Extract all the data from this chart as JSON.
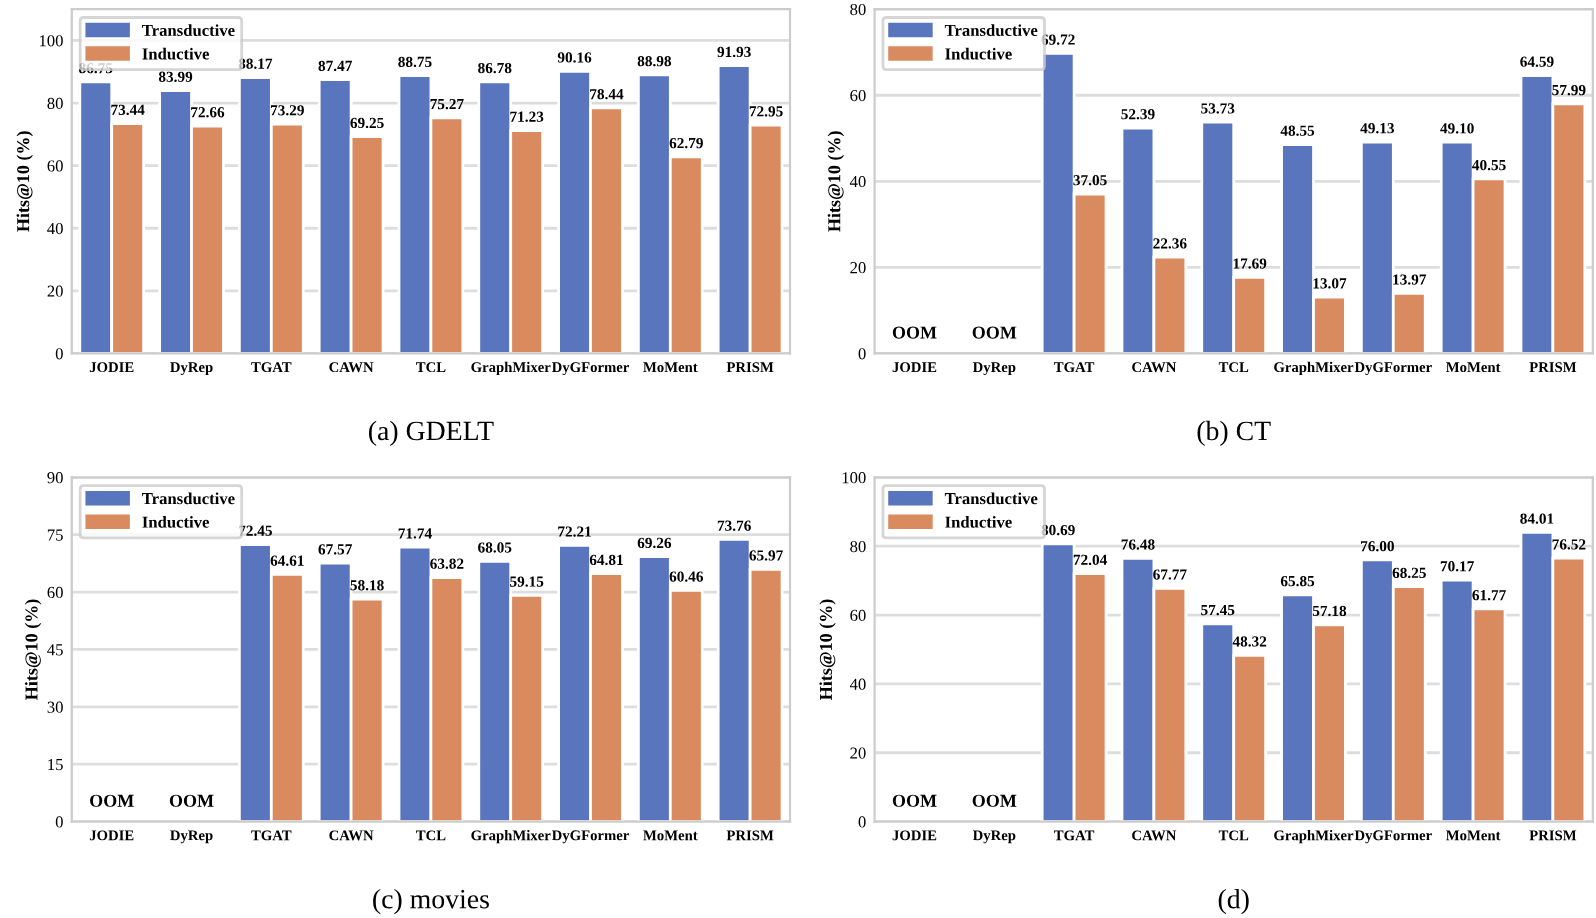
{
  "chart_data": [
    {
      "type": "bar",
      "title": "(a) GDELT",
      "ylabel": "Hits@10 (%)",
      "categories": [
        "JODIE",
        "DyRep",
        "TGAT",
        "CAWN",
        "TCL",
        "GraphMixer",
        "DyGFormer",
        "MoMent",
        "PRISM"
      ],
      "series": [
        {
          "name": "Transductive",
          "color": "#5975be",
          "values": [
            86.75,
            83.99,
            88.17,
            87.47,
            88.75,
            86.78,
            90.16,
            88.98,
            91.93
          ],
          "value_labels": [
            "86.75",
            "83.99",
            "88.17",
            "87.47",
            "88.75",
            "86.78",
            "90.16",
            "88.98",
            "91.93"
          ]
        },
        {
          "name": "Inductive",
          "color": "#d98a5f",
          "values": [
            73.44,
            72.66,
            73.29,
            69.25,
            75.27,
            71.23,
            78.44,
            62.79,
            72.95
          ],
          "value_labels": [
            "73.44",
            "72.66",
            "73.29",
            "69.25",
            "75.27",
            "71.23",
            "78.44",
            "62.79",
            "72.95"
          ]
        }
      ],
      "ylim": [
        0,
        110
      ],
      "yticks": [
        0,
        20,
        40,
        60,
        80,
        100
      ],
      "grid": "y",
      "legend": "top left"
    },
    {
      "type": "bar",
      "title": "(b) CT",
      "ylabel": "Hits@10 (%)",
      "categories": [
        "JODIE",
        "DyRep",
        "TGAT",
        "CAWN",
        "TCL",
        "GraphMixer",
        "DyGFormer",
        "MoMent",
        "PRISM"
      ],
      "series": [
        {
          "name": "Transductive",
          "color": "#5975be",
          "values": [
            null,
            null,
            69.72,
            52.39,
            53.73,
            48.55,
            49.13,
            49.1,
            64.59
          ],
          "value_labels": [
            null,
            null,
            "69.72",
            "52.39",
            "53.73",
            "48.55",
            "49.13",
            "49.10",
            "64.59"
          ]
        },
        {
          "name": "Inductive",
          "color": "#d98a5f",
          "values": [
            null,
            null,
            37.05,
            22.36,
            17.69,
            13.07,
            13.97,
            40.55,
            57.99
          ],
          "value_labels": [
            null,
            null,
            "37.05",
            "22.36",
            "17.69",
            "13.07",
            "13.97",
            "40.55",
            "57.99"
          ]
        }
      ],
      "annotations": [
        "OOM",
        "OOM"
      ],
      "ylim": [
        0,
        80
      ],
      "yticks": [
        0,
        20,
        40,
        60,
        80
      ],
      "grid": "y",
      "legend": "top left"
    },
    {
      "type": "bar",
      "title": "(c) movies",
      "ylabel": "Hits@10 (%)",
      "categories": [
        "JODIE",
        "DyRep",
        "TGAT",
        "CAWN",
        "TCL",
        "GraphMixer",
        "DyGFormer",
        "MoMent",
        "PRISM"
      ],
      "series": [
        {
          "name": "Transductive",
          "color": "#5975be",
          "values": [
            null,
            null,
            72.45,
            67.57,
            71.74,
            68.05,
            72.21,
            69.26,
            73.76
          ],
          "value_labels": [
            null,
            null,
            "72.45",
            "67.57",
            "71.74",
            "68.05",
            "72.21",
            "69.26",
            "73.76"
          ]
        },
        {
          "name": "Inductive",
          "color": "#d98a5f",
          "values": [
            null,
            null,
            64.61,
            58.18,
            63.82,
            59.15,
            64.81,
            60.46,
            65.97
          ],
          "value_labels": [
            null,
            null,
            "64.61",
            "58.18",
            "63.82",
            "59.15",
            "64.81",
            "60.46",
            "65.97"
          ]
        }
      ],
      "annotations": [
        "OOM",
        "OOM"
      ],
      "ylim": [
        0,
        90
      ],
      "yticks": [
        0,
        15,
        30,
        45,
        60,
        75,
        90
      ],
      "grid": "y",
      "legend": "top left"
    },
    {
      "type": "bar",
      "title": "(d)",
      "ylabel": "Hits@10 (%)",
      "categories": [
        "JODIE",
        "DyRep",
        "TGAT",
        "CAWN",
        "TCL",
        "GraphMixer",
        "DyGFormer",
        "MoMent",
        "PRISM"
      ],
      "series": [
        {
          "name": "Transductive",
          "color": "#5975be",
          "values": [
            null,
            null,
            80.69,
            76.48,
            57.45,
            65.85,
            76.0,
            70.17,
            84.01
          ],
          "value_labels": [
            null,
            null,
            "80.69",
            "76.48",
            "57.45",
            "65.85",
            "76.00",
            "70.17",
            "84.01"
          ]
        },
        {
          "name": "Inductive",
          "color": "#d98a5f",
          "values": [
            null,
            null,
            72.04,
            67.77,
            48.32,
            57.18,
            68.25,
            61.77,
            76.52
          ],
          "value_labels": [
            null,
            null,
            "72.04",
            "67.77",
            "48.32",
            "57.18",
            "68.25",
            "61.77",
            "76.52"
          ]
        }
      ],
      "annotations": [
        "OOM",
        "OOM"
      ],
      "ylim": [
        0,
        100
      ],
      "yticks": [
        0,
        20,
        40,
        60,
        80,
        100
      ],
      "grid": "y",
      "legend": "top left"
    }
  ]
}
